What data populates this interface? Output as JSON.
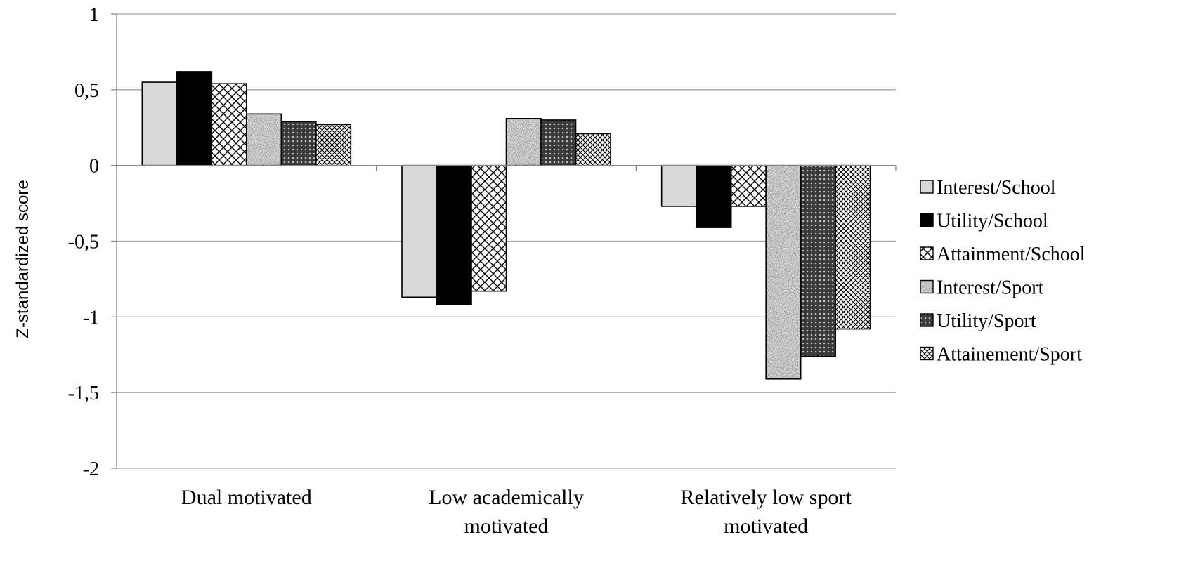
{
  "chart_data": {
    "type": "bar",
    "title": "",
    "xlabel": "",
    "ylabel": "Z-standardized score",
    "ylim": [
      -2,
      1
    ],
    "yticks": [
      1,
      0.5,
      0,
      -0.5,
      -1,
      -1.5,
      -2
    ],
    "ytick_labels": [
      "1",
      "0,5",
      "0",
      "-0,5",
      "-1",
      "-1,5",
      "-2"
    ],
    "grid": true,
    "legend_position": "right",
    "categories": [
      [
        "Dual motivated"
      ],
      [
        "Low academically",
        "motivated"
      ],
      [
        "Relatively low sport",
        "motivated"
      ]
    ],
    "series": [
      {
        "name": "Interest/School",
        "pattern": "solid-light-gray",
        "values": [
          0.55,
          -0.87,
          -0.27
        ]
      },
      {
        "name": "Utility/School",
        "pattern": "solid-black",
        "values": [
          0.62,
          -0.92,
          -0.41
        ]
      },
      {
        "name": "Attainment/School",
        "pattern": "large-crosshatch",
        "values": [
          0.54,
          -0.83,
          -0.27
        ]
      },
      {
        "name": "Interest/Sport",
        "pattern": "speckled-gray",
        "values": [
          0.34,
          0.31,
          -1.41
        ]
      },
      {
        "name": "Utility/Sport",
        "pattern": "dark-grid",
        "values": [
          0.29,
          0.3,
          -1.26
        ]
      },
      {
        "name": "Attainement/Sport",
        "pattern": "fine-crosshatch",
        "values": [
          0.27,
          0.21,
          -1.08
        ]
      }
    ],
    "colors": {
      "solid-light-gray": "#d9d9d9",
      "solid-black": "#000000",
      "gridline": "#a6a6a6",
      "axis": "#888888"
    }
  }
}
